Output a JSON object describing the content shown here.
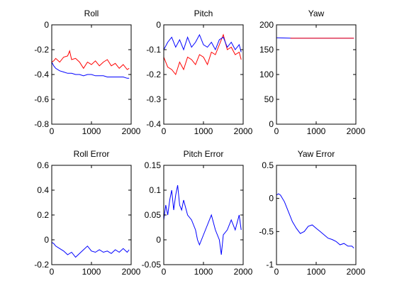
{
  "chart_data": [
    {
      "type": "line",
      "title": "Roll",
      "xlim": [
        0,
        2000
      ],
      "ylim": [
        -0.8,
        0
      ],
      "xticks": [
        0,
        1000,
        2000
      ],
      "yticks": [
        -0.8,
        -0.6,
        -0.4,
        -0.2,
        0
      ],
      "xticklabels": [
        "0",
        "1000",
        "2000"
      ],
      "yticklabels": [
        "-0.8",
        "-0.6",
        "-0.4",
        "-0.2",
        "0"
      ],
      "series": [
        {
          "color": "#ff0000",
          "x": [
            0,
            50,
            100,
            200,
            300,
            400,
            450,
            500,
            600,
            700,
            800,
            900,
            1000,
            1100,
            1200,
            1300,
            1400,
            1500,
            1600,
            1700,
            1800,
            1900,
            1950
          ],
          "y": [
            -0.3,
            -0.29,
            -0.27,
            -0.3,
            -0.26,
            -0.25,
            -0.21,
            -0.28,
            -0.27,
            -0.3,
            -0.35,
            -0.3,
            -0.32,
            -0.29,
            -0.33,
            -0.3,
            -0.28,
            -0.33,
            -0.31,
            -0.35,
            -0.32,
            -0.36,
            -0.35
          ]
        },
        {
          "color": "#0000ff",
          "x": [
            0,
            50,
            100,
            200,
            300,
            400,
            500,
            600,
            700,
            800,
            900,
            1000,
            1100,
            1200,
            1300,
            1400,
            1500,
            1600,
            1700,
            1800,
            1900,
            1950
          ],
          "y": [
            -0.3,
            -0.33,
            -0.35,
            -0.37,
            -0.38,
            -0.39,
            -0.39,
            -0.4,
            -0.4,
            -0.41,
            -0.4,
            -0.4,
            -0.41,
            -0.41,
            -0.41,
            -0.42,
            -0.42,
            -0.42,
            -0.42,
            -0.42,
            -0.43,
            -0.43
          ]
        }
      ]
    },
    {
      "type": "line",
      "title": "Pitch",
      "xlim": [
        0,
        2000
      ],
      "ylim": [
        -0.4,
        0
      ],
      "xticks": [
        0,
        1000,
        2000
      ],
      "yticks": [
        -0.4,
        -0.3,
        -0.2,
        -0.1,
        0
      ],
      "xticklabels": [
        "0",
        "1000",
        "2000"
      ],
      "yticklabels": [
        "-0.4",
        "-0.3",
        "-0.2",
        "-0.1",
        "0"
      ],
      "series": [
        {
          "color": "#ff0000",
          "x": [
            0,
            100,
            200,
            300,
            400,
            500,
            600,
            700,
            800,
            900,
            1000,
            1100,
            1200,
            1300,
            1400,
            1500,
            1600,
            1700,
            1800,
            1900,
            1950
          ],
          "y": [
            -0.13,
            -0.17,
            -0.18,
            -0.2,
            -0.15,
            -0.18,
            -0.13,
            -0.14,
            -0.16,
            -0.12,
            -0.13,
            -0.16,
            -0.11,
            -0.12,
            -0.08,
            -0.04,
            -0.1,
            -0.09,
            -0.12,
            -0.11,
            -0.14
          ]
        },
        {
          "color": "#0000ff",
          "x": [
            0,
            100,
            200,
            300,
            400,
            500,
            600,
            700,
            800,
            900,
            1000,
            1100,
            1200,
            1300,
            1400,
            1500,
            1600,
            1700,
            1800,
            1900,
            1950
          ],
          "y": [
            -0.1,
            -0.07,
            -0.05,
            -0.09,
            -0.06,
            -0.1,
            -0.05,
            -0.09,
            -0.07,
            -0.04,
            -0.08,
            -0.09,
            -0.07,
            -0.1,
            -0.06,
            -0.05,
            -0.09,
            -0.07,
            -0.1,
            -0.08,
            -0.11
          ]
        }
      ]
    },
    {
      "type": "line",
      "title": "Yaw",
      "xlim": [
        0,
        2000
      ],
      "ylim": [
        0,
        200
      ],
      "xticks": [
        0,
        1000,
        2000
      ],
      "yticks": [
        0,
        50,
        100,
        150,
        200
      ],
      "xticklabels": [
        "0",
        "1000",
        "2000"
      ],
      "yticklabels": [
        "0",
        "50",
        "100",
        "150",
        "200"
      ],
      "series": [
        {
          "color": "#0000ff",
          "x": [
            0,
            400,
            1000,
            1950
          ],
          "y": [
            174,
            173,
            173,
            173
          ]
        },
        {
          "color": "#ff0000",
          "x": [
            350,
            1000,
            1950
          ],
          "y": [
            173,
            173,
            173
          ]
        }
      ]
    },
    {
      "type": "line",
      "title": "Roll Error",
      "xlim": [
        0,
        2000
      ],
      "ylim": [
        -0.2,
        0.6
      ],
      "xticks": [
        0,
        1000,
        2000
      ],
      "yticks": [
        -0.2,
        0,
        0.2,
        0.4,
        0.6
      ],
      "xticklabels": [
        "0",
        "1000",
        "2000"
      ],
      "yticklabels": [
        "-0.2",
        "0",
        "0.2",
        "0.4",
        "0.6"
      ],
      "series": [
        {
          "color": "#0000ff",
          "x": [
            0,
            50,
            100,
            200,
            300,
            400,
            500,
            600,
            700,
            800,
            900,
            1000,
            1100,
            1200,
            1300,
            1400,
            1500,
            1600,
            1700,
            1800,
            1900,
            1950
          ],
          "y": [
            -0.02,
            -0.03,
            -0.05,
            -0.07,
            -0.09,
            -0.12,
            -0.1,
            -0.14,
            -0.11,
            -0.08,
            -0.05,
            -0.09,
            -0.1,
            -0.08,
            -0.1,
            -0.09,
            -0.11,
            -0.08,
            -0.1,
            -0.07,
            -0.1,
            -0.08
          ]
        }
      ]
    },
    {
      "type": "line",
      "title": "Pitch Error",
      "xlim": [
        0,
        2000
      ],
      "ylim": [
        -0.05,
        0.15
      ],
      "xticks": [
        0,
        1000,
        2000
      ],
      "yticks": [
        -0.05,
        0,
        0.05,
        0.1,
        0.15
      ],
      "xticklabels": [
        "0",
        "1000",
        "2000"
      ],
      "yticklabels": [
        "-0.05",
        "0",
        "0.05",
        "0.1",
        "0.15"
      ],
      "series": [
        {
          "color": "#0000ff",
          "x": [
            0,
            50,
            100,
            150,
            200,
            250,
            300,
            350,
            400,
            450,
            500,
            600,
            700,
            800,
            850,
            900,
            1000,
            1100,
            1200,
            1300,
            1400,
            1450,
            1500,
            1600,
            1700,
            1800,
            1900,
            1950
          ],
          "y": [
            0.04,
            0.07,
            0.05,
            0.08,
            0.1,
            0.06,
            0.09,
            0.11,
            0.07,
            0.06,
            0.08,
            0.05,
            0.04,
            0.02,
            0.0,
            -0.01,
            0.01,
            0.03,
            0.05,
            0.02,
            0.0,
            -0.03,
            0.01,
            0.02,
            0.04,
            0.02,
            0.05,
            0.02
          ]
        }
      ]
    },
    {
      "type": "line",
      "title": "Yaw Error",
      "xlim": [
        0,
        2000
      ],
      "ylim": [
        -1,
        0.5
      ],
      "xticks": [
        0,
        1000,
        2000
      ],
      "yticks": [
        -1,
        -0.5,
        0,
        0.5
      ],
      "xticklabels": [
        "0",
        "1000",
        "2000"
      ],
      "yticklabels": [
        "-1",
        "-0.5",
        "0",
        "0.5"
      ],
      "series": [
        {
          "color": "#0000ff",
          "x": [
            0,
            50,
            100,
            200,
            300,
            400,
            500,
            600,
            700,
            800,
            900,
            1000,
            1100,
            1200,
            1300,
            1400,
            1500,
            1600,
            1700,
            1800,
            1900,
            1950
          ],
          "y": [
            0.05,
            0.07,
            0.05,
            -0.05,
            -0.2,
            -0.35,
            -0.45,
            -0.53,
            -0.5,
            -0.42,
            -0.4,
            -0.45,
            -0.5,
            -0.55,
            -0.6,
            -0.62,
            -0.65,
            -0.7,
            -0.68,
            -0.72,
            -0.72,
            -0.75
          ]
        }
      ]
    }
  ]
}
